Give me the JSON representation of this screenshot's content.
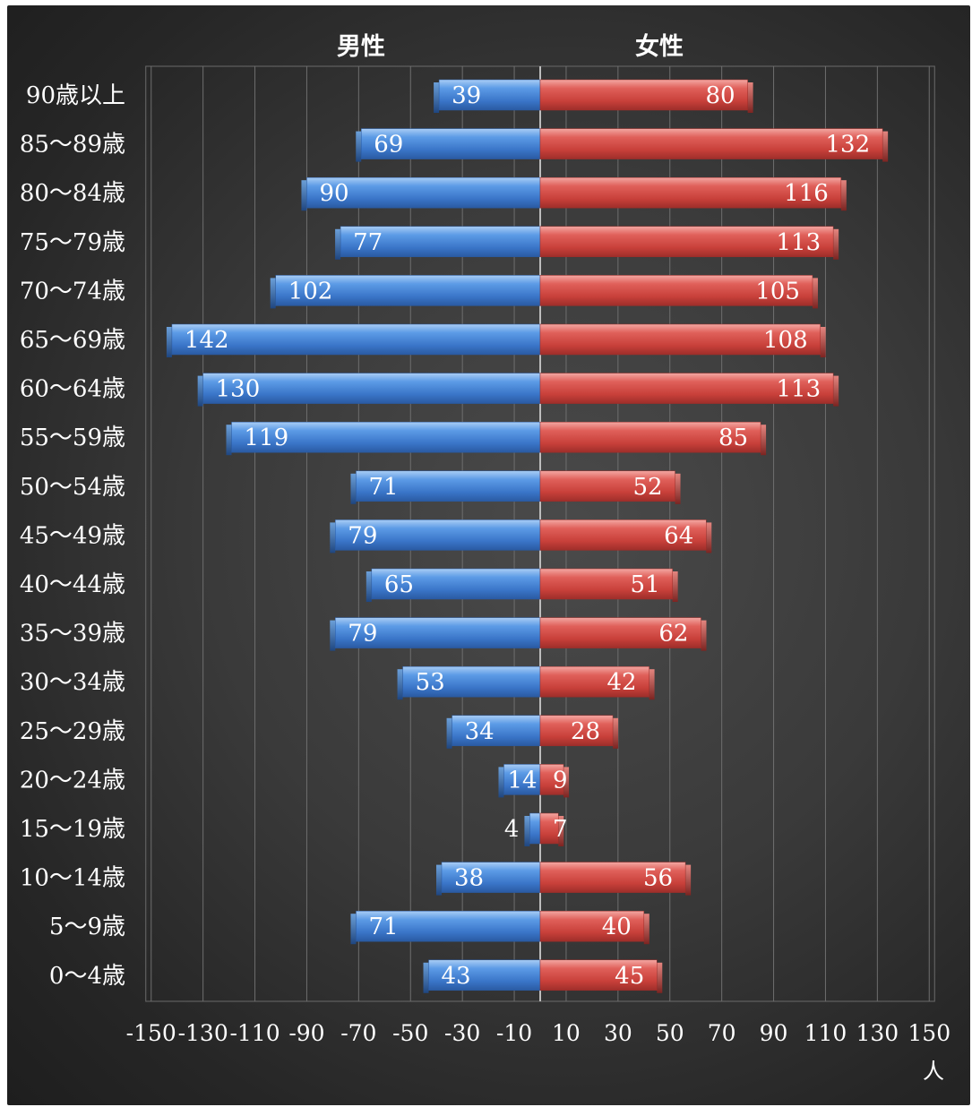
{
  "chart_data": {
    "type": "bar",
    "orientation": "horizontal-butterfly",
    "categories": [
      "90歳以上",
      "85～89歳",
      "80～84歳",
      "75～79歳",
      "70～74歳",
      "65～69歳",
      "60～64歳",
      "55～59歳",
      "50～54歳",
      "45～49歳",
      "40～44歳",
      "35～39歳",
      "30～34歳",
      "25～29歳",
      "20～24歳",
      "15～19歳",
      "10～14歳",
      "5～9歳",
      "0～4歳"
    ],
    "series": [
      {
        "name": "男性",
        "color": "#4a86d4",
        "values": [
          39,
          69,
          90,
          77,
          102,
          142,
          130,
          119,
          71,
          79,
          65,
          79,
          53,
          34,
          14,
          4,
          38,
          71,
          43
        ]
      },
      {
        "name": "女性",
        "color": "#d4504a",
        "values": [
          80,
          132,
          116,
          113,
          105,
          108,
          113,
          85,
          52,
          64,
          51,
          62,
          42,
          28,
          9,
          7,
          56,
          40,
          45
        ]
      }
    ],
    "x_ticks": [
      "-150",
      "-130",
      "-110",
      "-90",
      "-70",
      "-50",
      "-30",
      "-10",
      "10",
      "30",
      "50",
      "70",
      "90",
      "110",
      "130",
      "150"
    ],
    "x_tick_values": [
      -150,
      -130,
      -110,
      -90,
      -70,
      -50,
      -30,
      -10,
      10,
      30,
      50,
      70,
      90,
      110,
      130,
      150
    ],
    "xlim": [
      -150,
      150
    ],
    "xlabel": "人",
    "grid": true,
    "legend": "top"
  }
}
